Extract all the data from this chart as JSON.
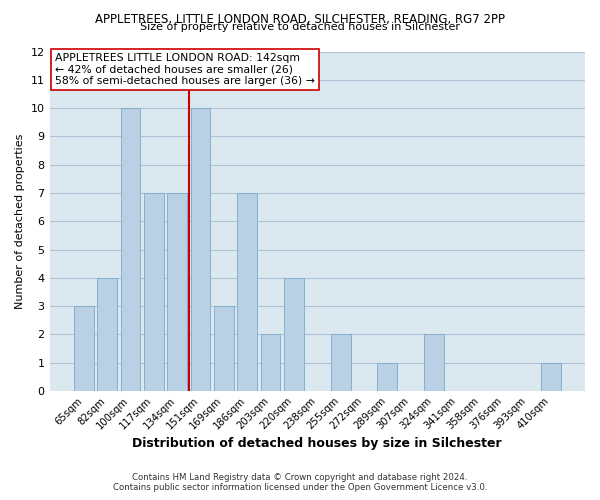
{
  "title1": "APPLETREES, LITTLE LONDON ROAD, SILCHESTER, READING, RG7 2PP",
  "title2": "Size of property relative to detached houses in Silchester",
  "xlabel": "Distribution of detached houses by size in Silchester",
  "ylabel": "Number of detached properties",
  "bar_labels": [
    "65sqm",
    "82sqm",
    "100sqm",
    "117sqm",
    "134sqm",
    "151sqm",
    "169sqm",
    "186sqm",
    "203sqm",
    "220sqm",
    "238sqm",
    "255sqm",
    "272sqm",
    "289sqm",
    "307sqm",
    "324sqm",
    "341sqm",
    "358sqm",
    "376sqm",
    "393sqm",
    "410sqm"
  ],
  "bar_heights": [
    3,
    4,
    10,
    7,
    7,
    10,
    3,
    7,
    2,
    4,
    0,
    2,
    0,
    1,
    0,
    2,
    0,
    0,
    0,
    0,
    1
  ],
  "bar_color": "#bad0e4",
  "bar_edge_color": "#7baac9",
  "vline_x": 4.5,
  "vline_color": "#cc0000",
  "annotation_title": "APPLETREES LITTLE LONDON ROAD: 142sqm",
  "annotation_line1": "← 42% of detached houses are smaller (26)",
  "annotation_line2": "58% of semi-detached houses are larger (36) →",
  "annotation_box_color": "white",
  "annotation_box_edge_color": "#cc0000",
  "ylim": [
    0,
    12
  ],
  "yticks": [
    0,
    1,
    2,
    3,
    4,
    5,
    6,
    7,
    8,
    9,
    10,
    11,
    12
  ],
  "footer1": "Contains HM Land Registry data © Crown copyright and database right 2024.",
  "footer2": "Contains public sector information licensed under the Open Government Licence v3.0.",
  "grid_color": "#adc4d8",
  "background_color": "#dce8f0"
}
